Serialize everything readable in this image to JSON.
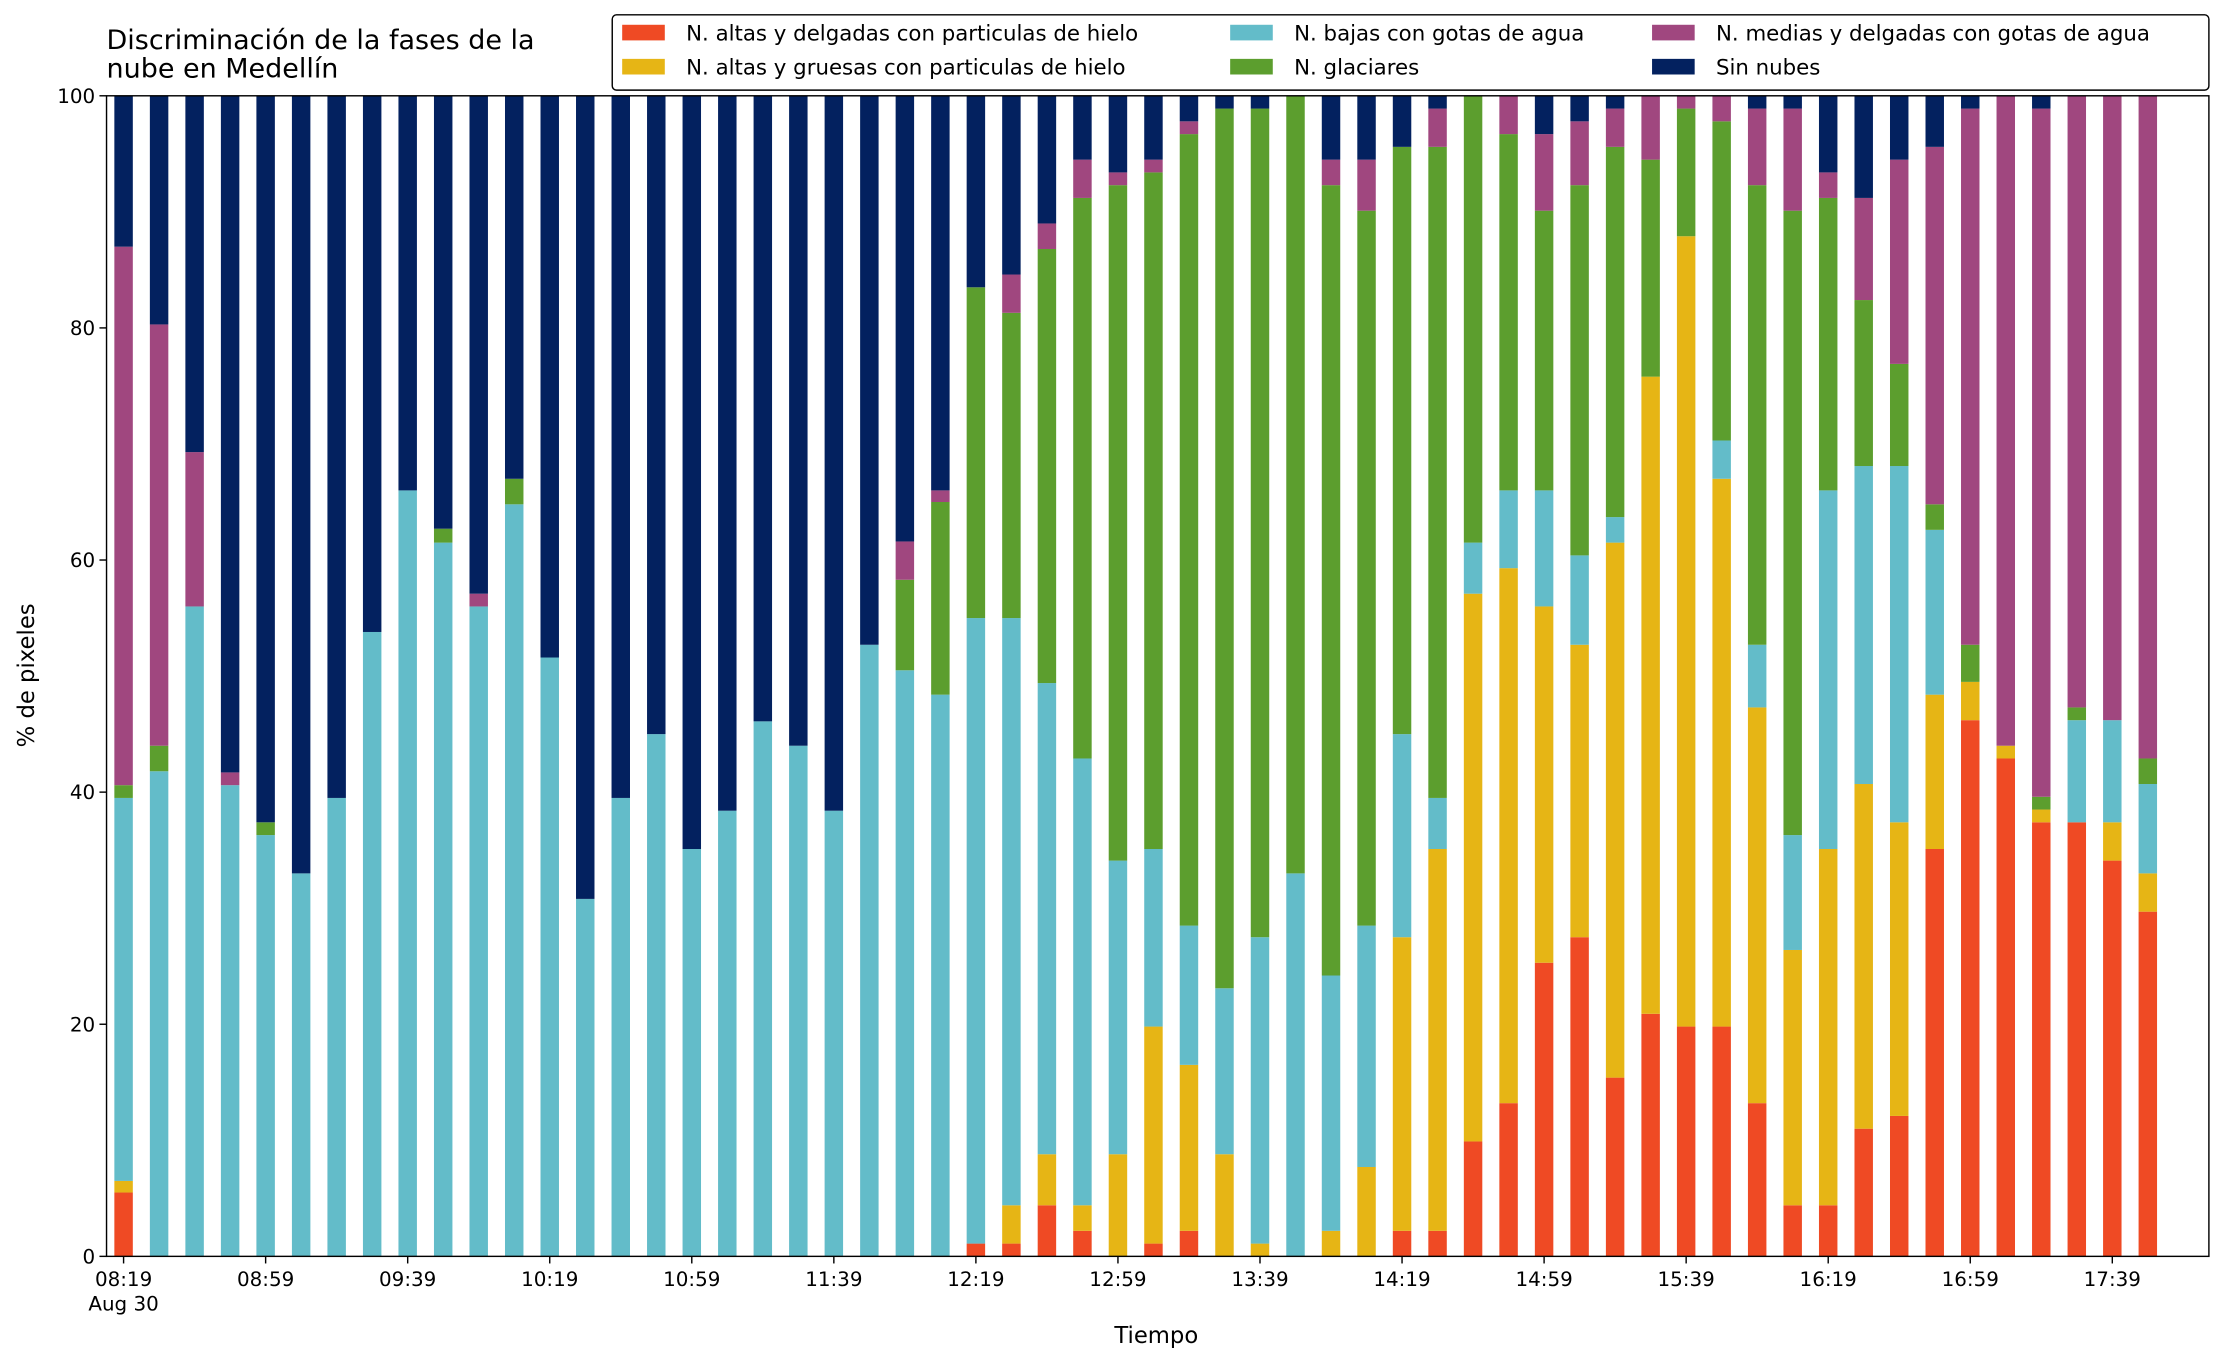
{
  "chart_data": {
    "type": "stacked_bar",
    "title": "Discriminación de la fases de la\nnube en Medellín",
    "x_label": "Tiempo",
    "y_label": "% de pixeles",
    "categories": [
      "08:19\nAug 30",
      null,
      null,
      null,
      "08:59",
      null,
      null,
      null,
      "09:39",
      null,
      null,
      null,
      "10:19",
      null,
      null,
      null,
      "10:59",
      null,
      null,
      null,
      "11:39",
      null,
      null,
      null,
      "12:19",
      null,
      null,
      null,
      "12:59",
      null,
      null,
      null,
      "13:39",
      null,
      null,
      null,
      "14:19",
      null,
      null,
      null,
      "14:59",
      null,
      null,
      null,
      "15:39",
      null,
      null,
      null,
      "16:19",
      null,
      null,
      null,
      "16:59",
      null,
      null,
      null,
      "17:39",
      null
    ],
    "ylim": [
      0,
      100
    ],
    "yticks": [
      0,
      20,
      40,
      60,
      80,
      100
    ],
    "legend": "top-right",
    "legend_columns": 3,
    "series": [
      {
        "name": "N. altas y delgadas con particulas de hielo",
        "color": "#ef4a24",
        "values": [
          5.5,
          0,
          0,
          0,
          0,
          0,
          0,
          0,
          0,
          0,
          0,
          0,
          0,
          0,
          0,
          0,
          0,
          0,
          0,
          0,
          0,
          0,
          0,
          0,
          1.1,
          1.1,
          4.4,
          2.2,
          0,
          1.1,
          2.2,
          0,
          0,
          0,
          0,
          0,
          2.2,
          2.2,
          9.9,
          13.2,
          25.3,
          27.5,
          15.4,
          20.9,
          19.8,
          19.8,
          13.2,
          4.4,
          4.4,
          11,
          12.1,
          35.1,
          46.2,
          42.9,
          37.4,
          37.4,
          34.1,
          29.7
        ]
      },
      {
        "name": "N. altas y gruesas con particulas de hielo",
        "color": "#e6b515",
        "values": [
          1,
          0,
          0,
          0,
          0,
          0,
          0,
          0,
          0,
          0,
          0,
          0,
          0,
          0,
          0,
          0,
          0,
          0,
          0,
          0,
          0,
          0,
          0,
          0,
          0,
          3.3,
          4.4,
          2.2,
          8.8,
          18.7,
          14.3,
          8.8,
          1.1,
          0,
          2.2,
          7.7,
          25.3,
          32.9,
          47.2,
          46.1,
          30.7,
          25.2,
          46.1,
          54.9,
          68.1,
          47.2,
          34.1,
          22,
          30.7,
          29.7,
          25.3,
          13.3,
          3.3,
          1.1,
          1.1,
          0,
          3.3,
          3.3
        ]
      },
      {
        "name": "N. bajas con gotas de agua",
        "color": "#63bcc9",
        "values": [
          33,
          41.8,
          56,
          40.6,
          36.3,
          33,
          39.5,
          53.8,
          66,
          61.5,
          56,
          64.8,
          51.6,
          30.8,
          39.5,
          45,
          35.1,
          38.4,
          46.1,
          44,
          38.4,
          52.7,
          50.5,
          48.4,
          53.9,
          50.6,
          40.6,
          38.5,
          25.3,
          15.3,
          12,
          14.3,
          26.4,
          33,
          22,
          20.8,
          17.5,
          4.4,
          4.4,
          6.7,
          10,
          7.7,
          2.2,
          0,
          0,
          3.3,
          5.4,
          9.9,
          30.9,
          27.4,
          30.7,
          14.2,
          0,
          0,
          0,
          8.8,
          8.8,
          7.7
        ]
      },
      {
        "name": "N. glaciares",
        "color": "#5c9e2e",
        "values": [
          1.1,
          2.2,
          0,
          0,
          1.1,
          0,
          0,
          0,
          0,
          1.2,
          0,
          2.2,
          0,
          0,
          0,
          0,
          0,
          0,
          0,
          0,
          0,
          0,
          7.8,
          16.6,
          28.5,
          26.3,
          37.4,
          48.3,
          58.2,
          58.3,
          68.2,
          75.8,
          71.4,
          67,
          68.1,
          61.6,
          50.6,
          56.1,
          38.5,
          30.7,
          24.1,
          31.9,
          31.9,
          18.7,
          11,
          27.5,
          39.6,
          53.8,
          25.2,
          14.3,
          8.8,
          2.2,
          3.2,
          0,
          1.1,
          1.1,
          0,
          2.2
        ]
      },
      {
        "name": "N. medias y delgadas con gotas de agua",
        "color": "#a0477f",
        "values": [
          46.4,
          36.3,
          13.3,
          1.1,
          0,
          0,
          0,
          0,
          0,
          0,
          1.1,
          0,
          0,
          0,
          0,
          0,
          0,
          0,
          0,
          0,
          0,
          0,
          3.3,
          1,
          0,
          3.3,
          2.2,
          3.3,
          1.1,
          1.1,
          1.1,
          0,
          0,
          0,
          2.2,
          4.4,
          0,
          3.3,
          0,
          3.3,
          6.6,
          5.5,
          3.3,
          5.5,
          1.1,
          2.2,
          6.6,
          8.8,
          2.2,
          8.8,
          17.6,
          30.8,
          46.2,
          56,
          59.3,
          52.7,
          53.8,
          57.1
        ]
      },
      {
        "name": "Sin nubes",
        "color": "#03215f",
        "values": [
          13,
          19.7,
          30.7,
          58.3,
          62.6,
          67,
          60.5,
          46.2,
          34,
          37.3,
          42.9,
          33,
          48.4,
          69.2,
          60.5,
          55,
          64.9,
          61.6,
          53.9,
          56,
          61.6,
          47.3,
          38.4,
          34,
          16.5,
          15.4,
          11,
          5.5,
          6.6,
          5.5,
          2.2,
          1.1,
          1.1,
          0,
          5.5,
          5.5,
          4.4,
          1.1,
          0,
          0,
          3.3,
          2.2,
          1.1,
          0,
          0,
          0,
          1.1,
          1.1,
          6.6,
          8.8,
          5.5,
          4.4,
          1.1,
          0,
          1.1,
          0,
          0,
          0
        ]
      }
    ]
  }
}
